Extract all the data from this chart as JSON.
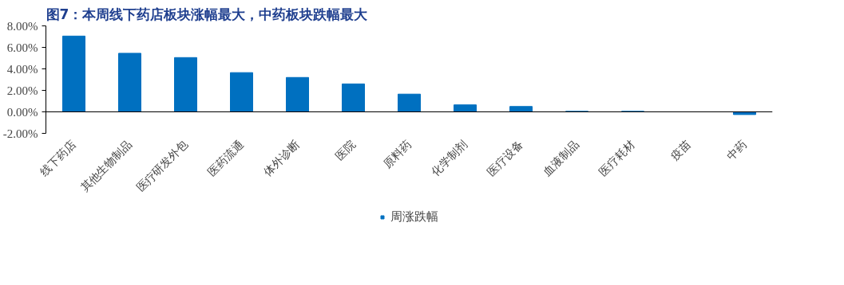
{
  "chart_data": {
    "type": "bar",
    "title": "图7：本周线下药店板块涨幅最大，中药板块跌幅最大",
    "categories": [
      "线下药店",
      "其他生物制品",
      "医疗研发外包",
      "医药流通",
      "体外诊断",
      "医院",
      "原料药",
      "化学制剂",
      "医疗设备",
      "血液制品",
      "医疗耗材",
      "疫苗",
      "中药"
    ],
    "series": [
      {
        "name": "周涨跌幅",
        "color": "#0070c0",
        "values": [
          7.05,
          5.45,
          5.05,
          3.65,
          3.2,
          2.6,
          1.65,
          0.65,
          0.5,
          0.05,
          0.05,
          0,
          -0.25
        ]
      }
    ],
    "ylim": [
      -2,
      8
    ],
    "yticks": [
      {
        "value": -2,
        "label": "-2.00%"
      },
      {
        "value": 0,
        "label": "0.00%"
      },
      {
        "value": 2,
        "label": "2.00%"
      },
      {
        "value": 4,
        "label": "4.00%"
      },
      {
        "value": 6,
        "label": "6.00%"
      },
      {
        "value": 8,
        "label": "8.00%"
      }
    ],
    "grid": false,
    "legend": "bottom"
  }
}
